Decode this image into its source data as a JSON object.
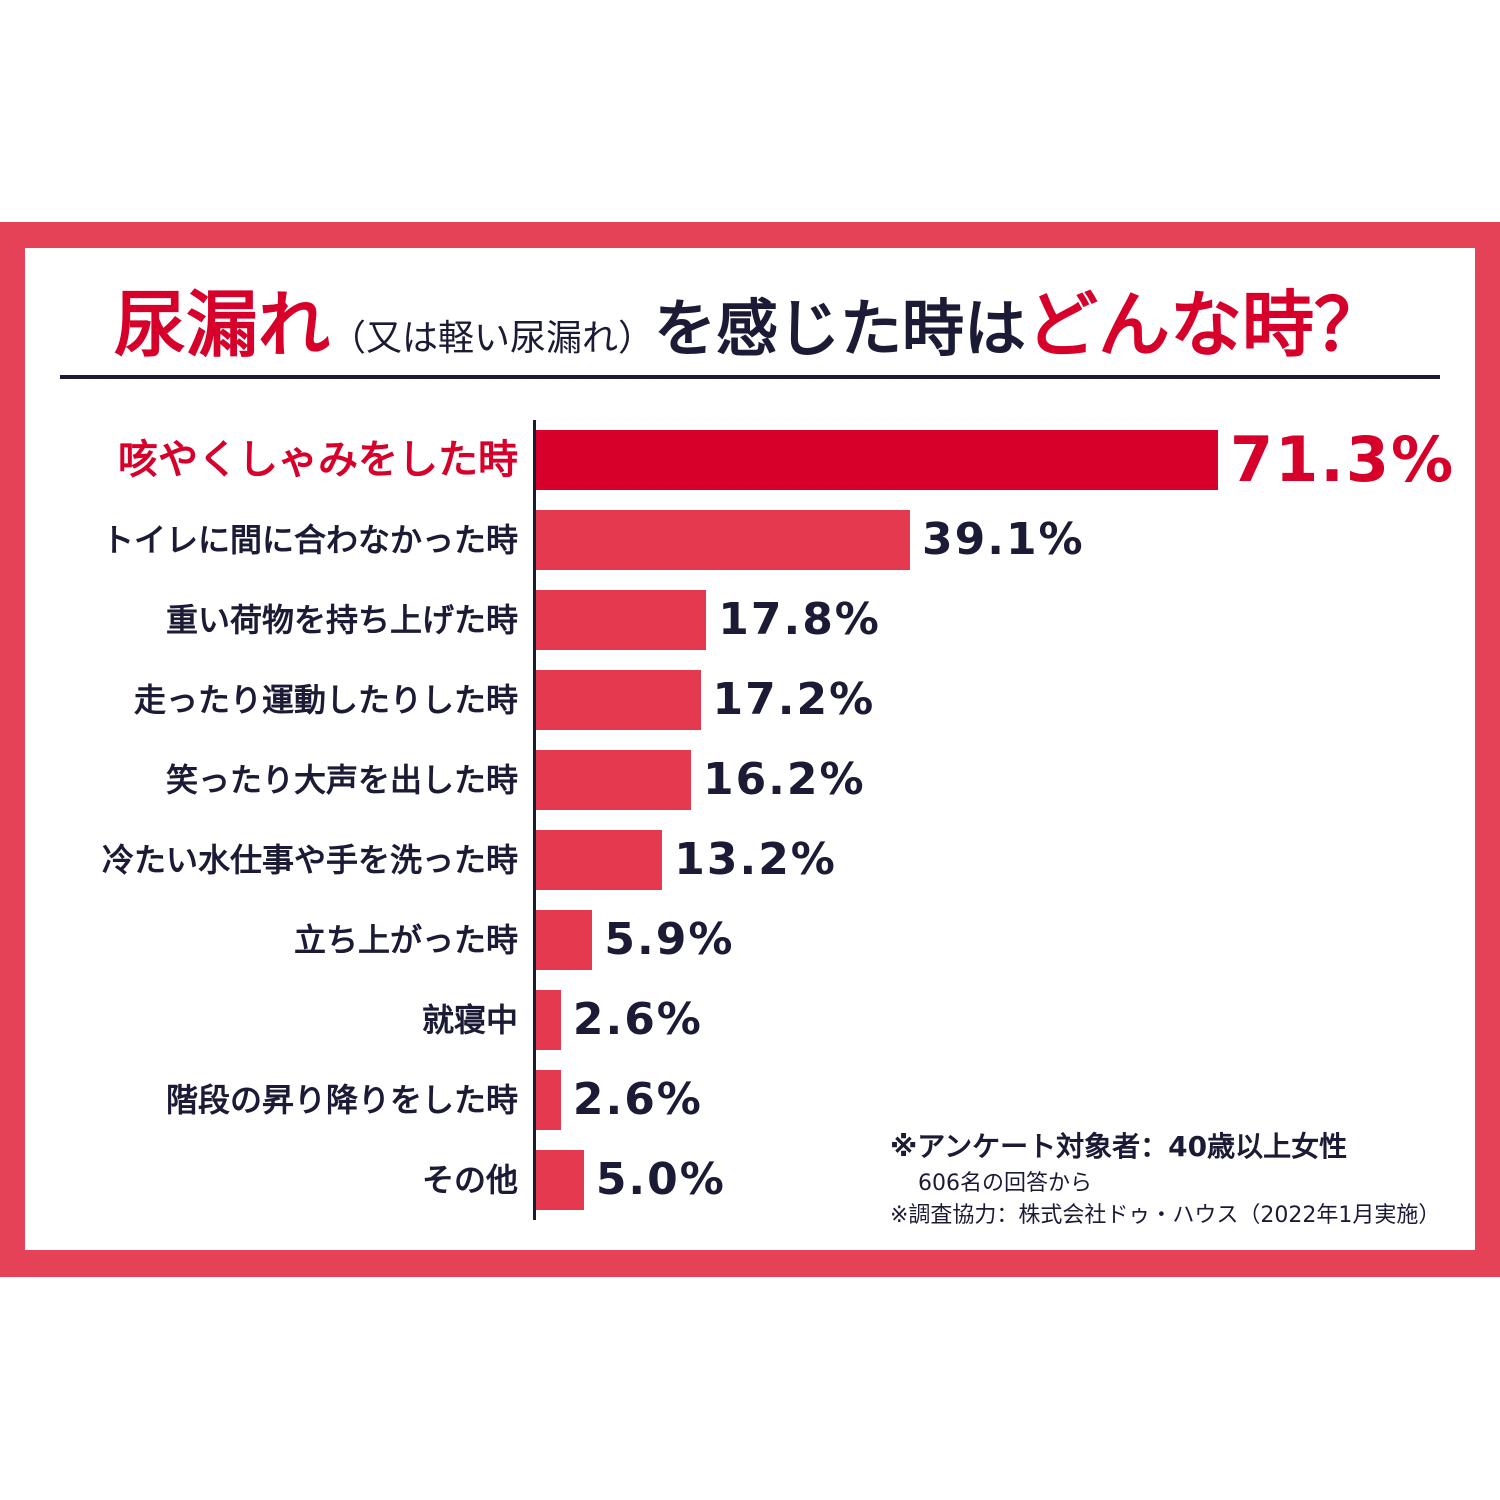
{
  "title": {
    "part1": "尿漏れ",
    "part2": "（又は軽い尿漏れ）",
    "part3": "を感じた時は",
    "part4": "どんな時？"
  },
  "colors": {
    "frame": "#e54257",
    "bar": "#e5394f",
    "highlight": "#d6002a",
    "text": "#1b1b36"
  },
  "chart_data": {
    "type": "bar",
    "orientation": "horizontal",
    "title": "尿漏れ（又は軽い尿漏れ）を感じた時はどんな時？",
    "unit": "%",
    "categories": [
      "咳やくしゃみをした時",
      "トイレに間に合わなかった時",
      "重い荷物を持ち上げた時",
      "走ったり運動したりした時",
      "笑ったり大声を出した時",
      "冷たい水仕事や手を洗った時",
      "立ち上がった時",
      "就寝中",
      "階段の昇り降りをした時",
      "その他"
    ],
    "values": [
      71.3,
      39.1,
      17.8,
      17.2,
      16.2,
      13.2,
      5.9,
      2.6,
      2.6,
      5.0
    ],
    "labels": [
      "71.3%",
      "39.1%",
      "17.8%",
      "17.2%",
      "16.2%",
      "13.2%",
      "5.9%",
      "2.6%",
      "2.6%",
      "5.0%"
    ],
    "highlight_index": 0,
    "xlim": [
      0,
      71.3
    ]
  },
  "notes": {
    "line1": "※アンケート対象者：40歳以上女性",
    "line2": "606名の回答から",
    "line3": "※調査協力：株式会社ドゥ・ハウス（2022年1月実施）"
  }
}
